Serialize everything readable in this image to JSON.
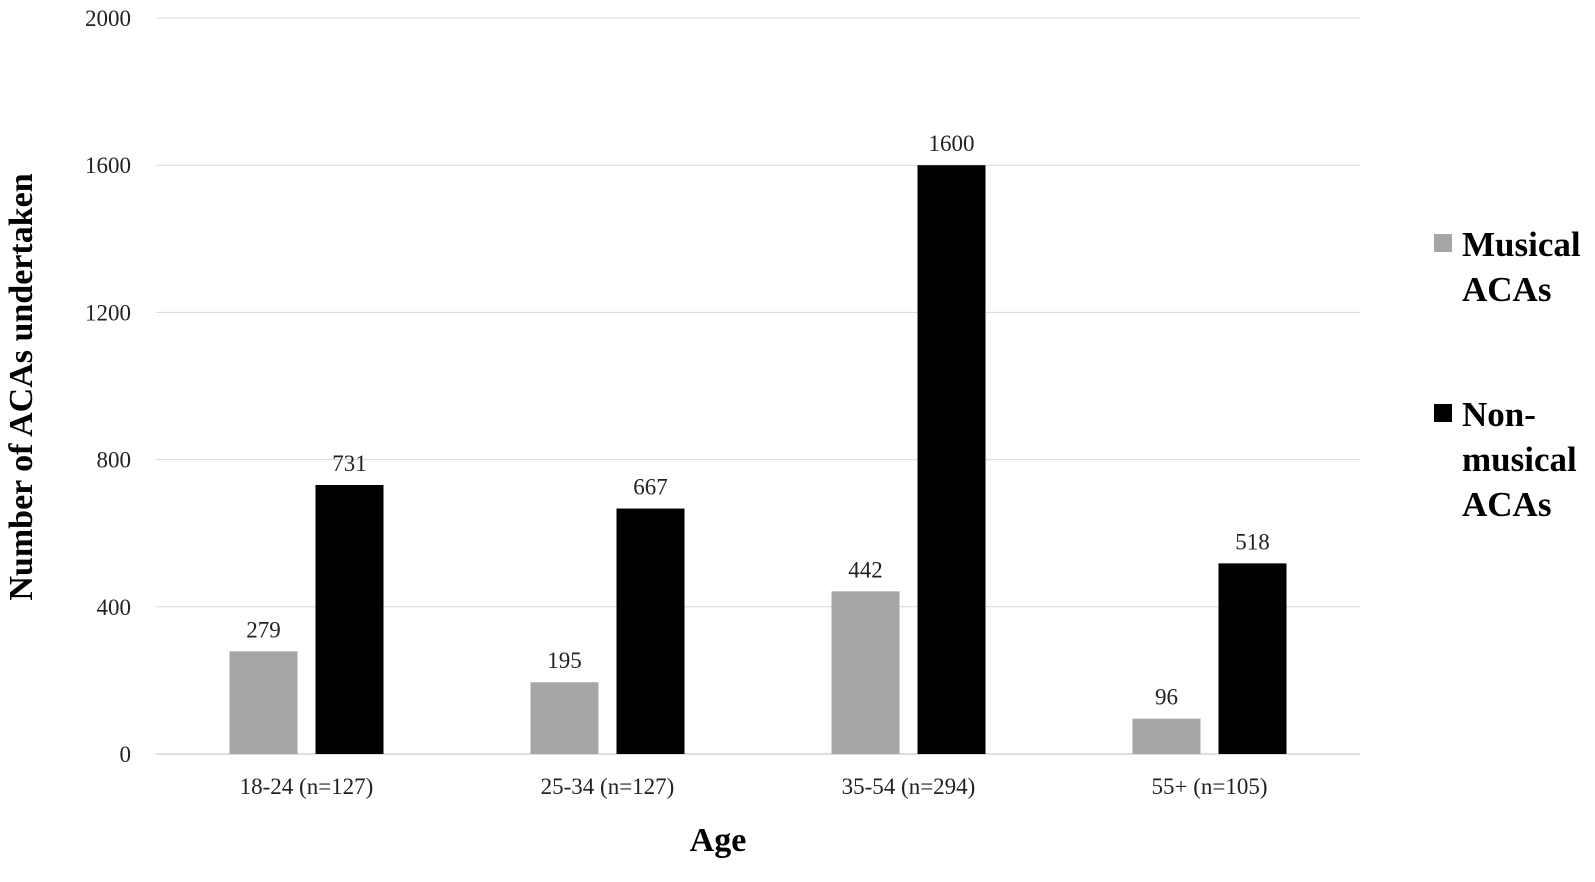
{
  "chart_data": {
    "type": "bar",
    "categories": [
      "18-24 (n=127)",
      "25-34 (n=127)",
      "35-54 (n=294)",
      "55+ (n=105)"
    ],
    "series": [
      {
        "name": "Musical ACAs",
        "values": [
          279,
          195,
          442,
          96
        ],
        "color": "#a6a6a6"
      },
      {
        "name": "Non-musical ACAs",
        "values": [
          731,
          667,
          1600,
          518
        ],
        "color": "#000000"
      }
    ],
    "title": "",
    "xlabel": "Age",
    "ylabel": "Number of ACAs undertaken",
    "ylim": [
      0,
      2000
    ],
    "yticks": [
      0,
      400,
      800,
      1200,
      1600,
      2000
    ],
    "grid": true,
    "legend_position": "right",
    "data_labels": true
  }
}
